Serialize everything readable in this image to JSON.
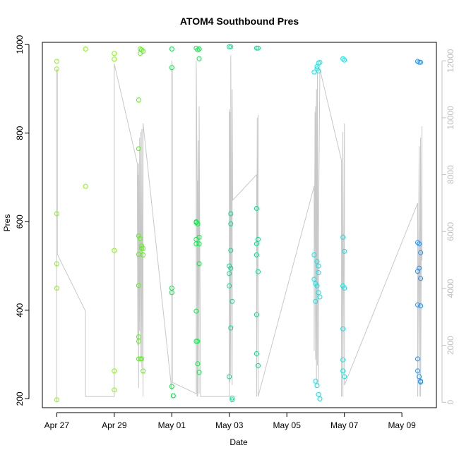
{
  "chart_data": {
    "type": "scatter",
    "title": "ATOM4 Southbound Pres",
    "xlabel": "Date",
    "ylabel": "Pres",
    "x_ticks": [
      "Apr 27",
      "Apr 29",
      "May 01",
      "May 03",
      "May 05",
      "May 07",
      "May 09"
    ],
    "x_tick_days": [
      0,
      2,
      4,
      6,
      8,
      10,
      12
    ],
    "xlim_days": [
      -0.5,
      13.2
    ],
    "ylim": [
      180,
      1005
    ],
    "y_ticks": [
      200,
      400,
      600,
      800,
      1000
    ],
    "y2_ticks": [
      0,
      2000,
      4000,
      6000,
      8000,
      10000,
      12000
    ],
    "y2lim": [
      -190,
      12650
    ],
    "grid": false,
    "colors": {
      "points_early": "#7fff00",
      "points_mid": "#00e040",
      "points_late": "#00e8e8",
      "points_last": "#1e90ff",
      "secondary_line": "#c8c8c8",
      "secondary_axis": "#c0c0c0"
    },
    "series": [
      {
        "color": "#7fff00",
        "points": [
          [
            0.0,
            962
          ],
          [
            0.0,
            945
          ],
          [
            0.0,
            618
          ],
          [
            0.0,
            505
          ],
          [
            0.0,
            450
          ],
          [
            0.0,
            198
          ],
          [
            1.0,
            990
          ],
          [
            1.0,
            680
          ],
          [
            2.0,
            980
          ],
          [
            2.0,
            967
          ],
          [
            2.0,
            535
          ],
          [
            2.0,
            263
          ],
          [
            2.0,
            220
          ]
        ]
      },
      {
        "color": "#4cff00",
        "points": [
          [
            2.85,
            875
          ],
          [
            2.85,
            765
          ],
          [
            2.85,
            568
          ],
          [
            2.85,
            526
          ],
          [
            2.85,
            456
          ],
          [
            2.85,
            340
          ],
          [
            2.85,
            330
          ],
          [
            2.85,
            290
          ],
          [
            2.9,
            990
          ],
          [
            2.9,
            980
          ],
          [
            2.9,
            562
          ],
          [
            2.9,
            290
          ],
          [
            2.95,
            988
          ],
          [
            2.95,
            545
          ],
          [
            2.95,
            540
          ],
          [
            2.95,
            290
          ],
          [
            3.0,
            985
          ],
          [
            3.0,
            540
          ],
          [
            3.0,
            525
          ],
          [
            3.0,
            263
          ]
        ]
      },
      {
        "color": "#00ee40",
        "points": [
          [
            4.0,
            990
          ],
          [
            4.0,
            948
          ],
          [
            4.0,
            450
          ],
          [
            4.0,
            440
          ],
          [
            4.0,
            228
          ],
          [
            4.05,
            207
          ],
          [
            4.05,
            207
          ],
          [
            4.85,
            992
          ],
          [
            4.85,
            600
          ],
          [
            4.85,
            598
          ],
          [
            4.85,
            560
          ],
          [
            4.85,
            550
          ],
          [
            4.85,
            398
          ],
          [
            4.85,
            330
          ],
          [
            4.9,
            988
          ],
          [
            4.9,
            595
          ],
          [
            4.9,
            330
          ],
          [
            4.9,
            279
          ],
          [
            4.95,
            990
          ],
          [
            4.95,
            968
          ],
          [
            4.95,
            565
          ],
          [
            4.95,
            550
          ],
          [
            4.95,
            505
          ],
          [
            4.95,
            260
          ]
        ]
      },
      {
        "color": "#00e08a",
        "points": [
          [
            6.0,
            995
          ],
          [
            6.0,
            500
          ],
          [
            6.0,
            483
          ],
          [
            6.0,
            455
          ],
          [
            6.0,
            250
          ],
          [
            6.05,
            995
          ],
          [
            6.05,
            618
          ],
          [
            6.05,
            595
          ],
          [
            6.05,
            535
          ],
          [
            6.05,
            495
          ],
          [
            6.05,
            360
          ],
          [
            6.1,
            420
          ],
          [
            6.1,
            202
          ],
          [
            6.1,
            198
          ],
          [
            6.95,
            992
          ],
          [
            6.95,
            630
          ],
          [
            6.95,
            550
          ],
          [
            6.95,
            525
          ],
          [
            6.95,
            390
          ],
          [
            6.95,
            302
          ],
          [
            7.0,
            992
          ],
          [
            7.0,
            560
          ],
          [
            7.0,
            487
          ],
          [
            7.0,
            275
          ]
        ]
      },
      {
        "color": "#00e8e8",
        "points": [
          [
            8.95,
            938
          ],
          [
            8.95,
            525
          ],
          [
            8.95,
            470
          ],
          [
            9.0,
            460
          ],
          [
            9.0,
            420
          ],
          [
            9.0,
            240
          ],
          [
            9.05,
            950
          ],
          [
            9.05,
            945
          ],
          [
            9.05,
            510
          ],
          [
            9.05,
            455
          ],
          [
            9.05,
            230
          ],
          [
            9.1,
            958
          ],
          [
            9.1,
            940
          ],
          [
            9.1,
            500
          ],
          [
            9.1,
            485
          ],
          [
            9.1,
            440
          ],
          [
            9.1,
            210
          ],
          [
            9.15,
            960
          ],
          [
            9.15,
            430
          ],
          [
            9.15,
            200
          ],
          [
            9.95,
            968
          ],
          [
            9.95,
            565
          ],
          [
            9.95,
            455
          ],
          [
            9.95,
            358
          ],
          [
            9.95,
            288
          ],
          [
            9.95,
            263
          ],
          [
            10.0,
            965
          ],
          [
            10.0,
            533
          ],
          [
            10.0,
            450
          ],
          [
            10.0,
            250
          ]
        ]
      },
      {
        "color": "#1e90ff",
        "points": [
          [
            12.55,
            962
          ],
          [
            12.55,
            553
          ],
          [
            12.55,
            488
          ],
          [
            12.55,
            412
          ],
          [
            12.55,
            290
          ],
          [
            12.55,
            263
          ],
          [
            12.6,
            960
          ],
          [
            12.6,
            550
          ],
          [
            12.6,
            495
          ],
          [
            12.6,
            250
          ],
          [
            12.65,
            960
          ],
          [
            12.65,
            530
          ],
          [
            12.65,
            472
          ],
          [
            12.65,
            410
          ],
          [
            12.65,
            240
          ],
          [
            12.65,
            238
          ]
        ]
      }
    ],
    "secondary_line": {
      "axis": "right",
      "color": "#c8c8c8",
      "points": [
        [
          0.0,
          0
        ],
        [
          0.0,
          1500
        ],
        [
          0.0,
          11700
        ],
        [
          0.02,
          11700
        ],
        [
          0.02,
          5200
        ],
        [
          1.0,
          3200
        ],
        [
          1.0,
          200
        ],
        [
          2.0,
          200
        ],
        [
          2.0,
          11900
        ],
        [
          2.8,
          8400
        ],
        [
          2.82,
          2000
        ],
        [
          2.82,
          8000
        ],
        [
          2.85,
          500
        ],
        [
          2.85,
          8400
        ],
        [
          2.88,
          2500
        ],
        [
          2.88,
          9300
        ],
        [
          2.92,
          1500
        ],
        [
          2.92,
          9500
        ],
        [
          2.96,
          1200
        ],
        [
          2.96,
          9600
        ],
        [
          3.0,
          200
        ],
        [
          3.0,
          9800
        ],
        [
          4.0,
          400
        ],
        [
          4.0,
          12000
        ],
        [
          4.02,
          11500
        ],
        [
          4.02,
          700
        ],
        [
          4.85,
          300
        ],
        [
          4.85,
          12000
        ],
        [
          4.88,
          7800
        ],
        [
          4.88,
          200
        ],
        [
          4.9,
          7800
        ],
        [
          4.9,
          200
        ],
        [
          4.92,
          9200
        ],
        [
          4.92,
          8300
        ],
        [
          4.95,
          300
        ],
        [
          4.95,
          10400
        ],
        [
          5.0,
          200
        ],
        [
          6.0,
          200
        ],
        [
          6.0,
          10300
        ],
        [
          6.02,
          700
        ],
        [
          6.02,
          10200
        ],
        [
          6.05,
          1000
        ],
        [
          6.05,
          12200
        ],
        [
          6.08,
          5100
        ],
        [
          6.1,
          600
        ],
        [
          6.1,
          11000
        ],
        [
          6.12,
          7100
        ],
        [
          6.95,
          8000
        ],
        [
          6.95,
          200
        ],
        [
          6.97,
          10000
        ],
        [
          7.0,
          300
        ],
        [
          7.0,
          10100
        ],
        [
          7.0,
          200
        ],
        [
          8.95,
          7600
        ],
        [
          8.95,
          1800
        ],
        [
          8.98,
          10200
        ],
        [
          9.0,
          1500
        ],
        [
          9.0,
          10400
        ],
        [
          9.03,
          700
        ],
        [
          9.03,
          11000
        ],
        [
          9.06,
          1300
        ],
        [
          9.06,
          11600
        ],
        [
          9.1,
          600
        ],
        [
          9.1,
          6000
        ],
        [
          9.15,
          11700
        ],
        [
          9.9,
          8500
        ],
        [
          9.9,
          200
        ],
        [
          9.95,
          9500
        ],
        [
          9.95,
          200
        ],
        [
          10.0,
          9800
        ],
        [
          10.0,
          600
        ],
        [
          12.55,
          7000
        ],
        [
          12.55,
          200
        ],
        [
          12.6,
          9000
        ],
        [
          12.6,
          200
        ],
        [
          12.65,
          9300
        ],
        [
          12.65,
          200
        ],
        [
          12.7,
          9700
        ],
        [
          12.7,
          5000
        ]
      ]
    }
  }
}
